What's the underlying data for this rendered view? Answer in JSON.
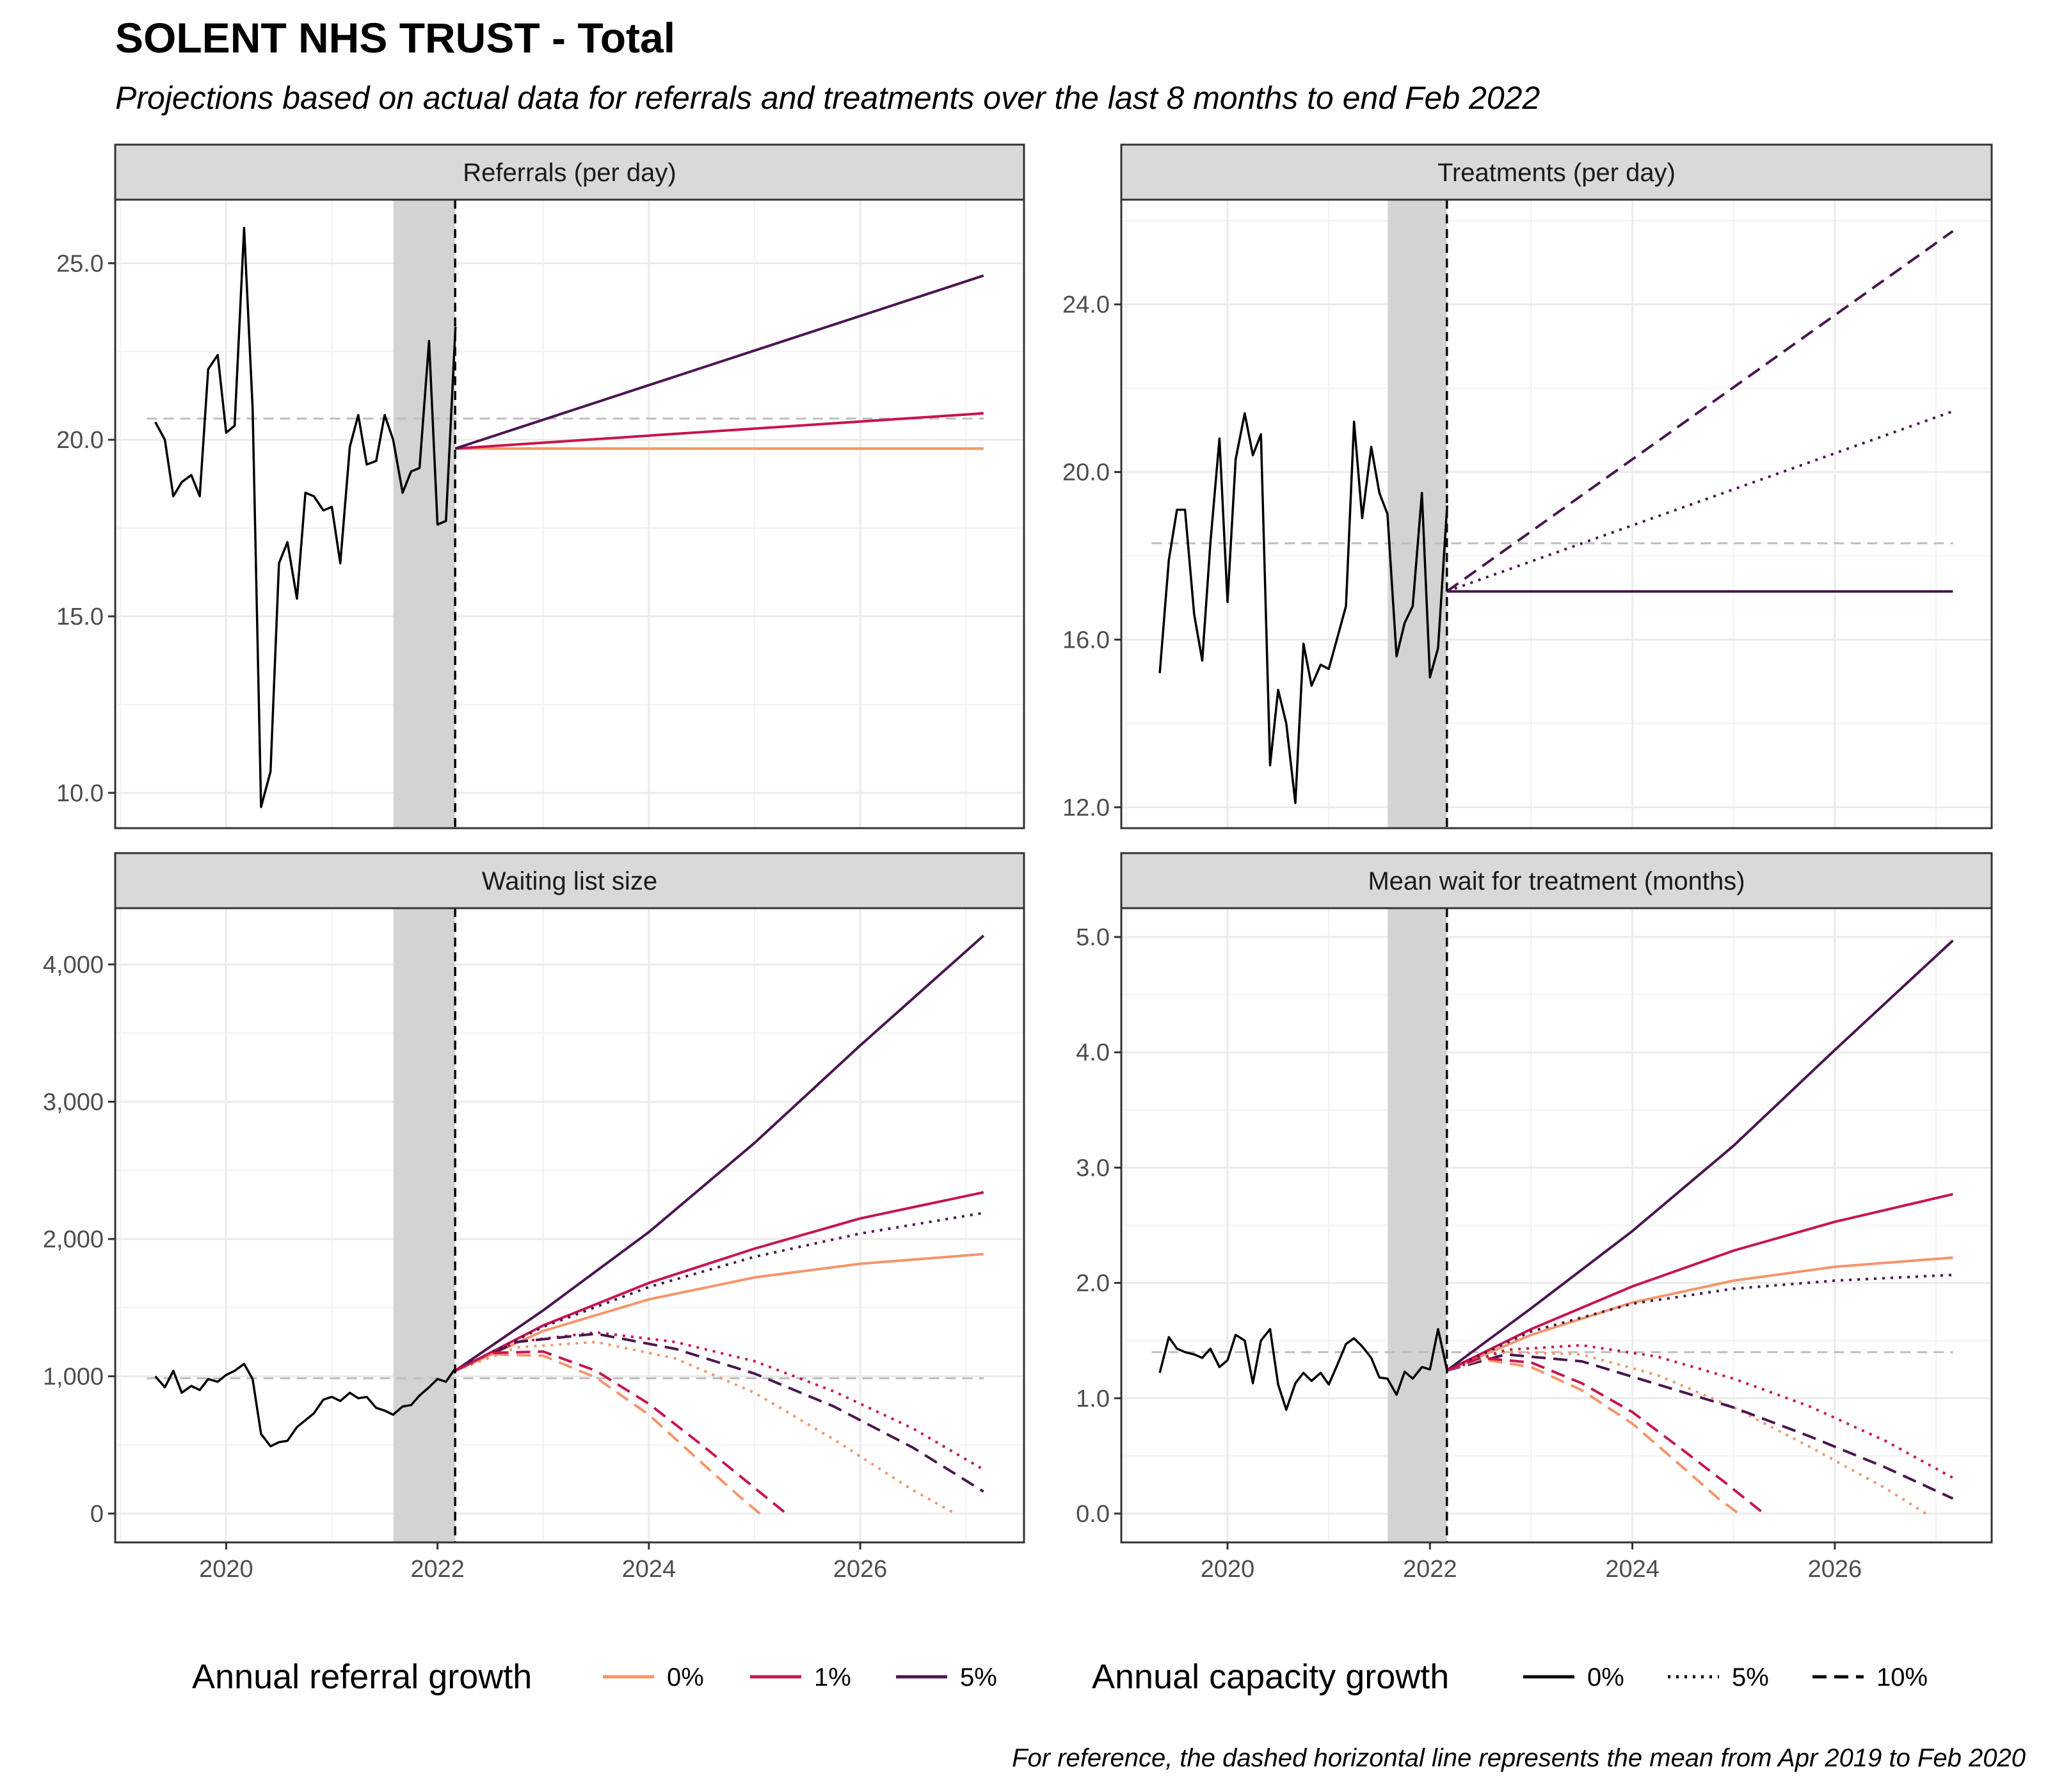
{
  "title": "SOLENT NHS TRUST - Total",
  "subtitle": "Projections based on actual data for referrals and treatments over the last 8 months to end Feb 2022",
  "caption": "For reference, the dashed horizontal line represents the mean from Apr 2019 to Feb 2020",
  "legend": {
    "referral_title": "Annual referral growth",
    "referral_items": [
      {
        "label": "0%",
        "color": "#F4956A"
      },
      {
        "label": "1%",
        "color": "#C6154F"
      },
      {
        "label": "5%",
        "color": "#4A1550"
      }
    ],
    "capacity_title": "Annual capacity growth",
    "capacity_items": [
      {
        "label": "0%",
        "dash": "solid"
      },
      {
        "label": "5%",
        "dash": "dotted"
      },
      {
        "label": "10%",
        "dash": "dashed"
      }
    ],
    "position": "bottom"
  },
  "colors": {
    "growth_0": "#F4956A",
    "growth_1": "#C6154F",
    "growth_5": "#4A1550",
    "actual": "#000000",
    "reference": "#BEBEBE",
    "shade": "#D3D3D3",
    "strip": "#D9D9D9"
  },
  "chart_data": [
    {
      "type": "line",
      "panel_title": "Referrals (per day)",
      "x_ticks": [
        2020,
        2022,
        2024,
        2026
      ],
      "x_tick_labels": [
        "2020",
        "2022",
        "2024",
        "2026"
      ],
      "xlim": [
        2018.95,
        2027.55
      ],
      "y_ticks": [
        10,
        15,
        20,
        25
      ],
      "y_tick_labels": [
        "10.0",
        "15.0",
        "20.0",
        "25.0"
      ],
      "ylim": [
        9.0,
        26.8
      ],
      "grid": true,
      "shaded_period": [
        2021.583,
        2022.167
      ],
      "projection_start": 2022.167,
      "reference_mean": 20.6,
      "reference_range": [
        2019.25,
        2027.17
      ],
      "actual": {
        "x": [
          2019.33,
          2019.42,
          2019.5,
          2019.58,
          2019.67,
          2019.75,
          2019.83,
          2019.92,
          2020.0,
          2020.08,
          2020.17,
          2020.25,
          2020.33,
          2020.42,
          2020.5,
          2020.58,
          2020.67,
          2020.75,
          2020.83,
          2020.92,
          2021.0,
          2021.08,
          2021.17,
          2021.25,
          2021.33,
          2021.42,
          2021.5,
          2021.58,
          2021.67,
          2021.75,
          2021.83,
          2021.92,
          2022.0,
          2022.08,
          2022.17
        ],
        "y": [
          20.5,
          20.0,
          18.4,
          18.8,
          19.0,
          18.4,
          22.0,
          22.4,
          20.2,
          20.4,
          26.0,
          20.9,
          9.6,
          10.6,
          16.5,
          17.1,
          15.5,
          18.5,
          18.4,
          18.0,
          18.1,
          16.5,
          19.8,
          20.7,
          19.3,
          19.4,
          20.7,
          20.0,
          18.5,
          19.1,
          19.2,
          22.8,
          17.6,
          17.7,
          23.2
        ]
      },
      "series": [
        {
          "name": "0%",
          "referral_growth": "0%",
          "capacity_growth": "0%",
          "x": [
            2022.167,
            2027.167
          ],
          "y": [
            19.75,
            19.75
          ]
        },
        {
          "name": "1%",
          "referral_growth": "1%",
          "capacity_growth": "0%",
          "x": [
            2022.167,
            2027.167
          ],
          "y": [
            19.75,
            20.75
          ]
        },
        {
          "name": "5%",
          "referral_growth": "5%",
          "capacity_growth": "0%",
          "x": [
            2022.167,
            2027.167
          ],
          "y": [
            19.75,
            24.65
          ]
        }
      ]
    },
    {
      "type": "line",
      "panel_title": "Treatments (per day)",
      "x_ticks": [
        2020,
        2022,
        2024,
        2026
      ],
      "x_tick_labels": [
        "2020",
        "2022",
        "2024",
        "2026"
      ],
      "xlim": [
        2018.95,
        2027.55
      ],
      "y_ticks": [
        12,
        16,
        20,
        24
      ],
      "y_tick_labels": [
        "12.0",
        "16.0",
        "20.0",
        "24.0"
      ],
      "ylim": [
        11.5,
        26.5
      ],
      "grid": true,
      "shaded_period": [
        2021.583,
        2022.167
      ],
      "projection_start": 2022.167,
      "reference_mean": 18.3,
      "reference_range": [
        2019.25,
        2027.17
      ],
      "actual": {
        "x": [
          2019.33,
          2019.42,
          2019.5,
          2019.58,
          2019.67,
          2019.75,
          2019.83,
          2019.92,
          2020.0,
          2020.08,
          2020.17,
          2020.25,
          2020.33,
          2020.42,
          2020.5,
          2020.58,
          2020.67,
          2020.75,
          2020.83,
          2020.92,
          2021.0,
          2021.08,
          2021.17,
          2021.25,
          2021.33,
          2021.42,
          2021.5,
          2021.58,
          2021.67,
          2021.75,
          2021.83,
          2021.92,
          2022.0,
          2022.08,
          2022.17
        ],
        "y": [
          15.2,
          17.9,
          19.1,
          19.1,
          16.6,
          15.5,
          18.3,
          20.8,
          16.9,
          20.3,
          21.4,
          20.4,
          20.9,
          13.0,
          14.8,
          14.0,
          12.1,
          15.9,
          14.9,
          15.4,
          15.3,
          16.0,
          16.8,
          21.2,
          18.9,
          20.6,
          19.5,
          19.0,
          15.6,
          16.4,
          16.8,
          19.5,
          15.1,
          15.8,
          19.2
        ]
      },
      "series": [
        {
          "name": "0%",
          "capacity_growth": "0%",
          "x": [
            2022.167,
            2027.167
          ],
          "y": [
            17.15,
            17.15
          ]
        },
        {
          "name": "5%",
          "capacity_growth": "5%",
          "x": [
            2022.167,
            2027.167
          ],
          "y": [
            17.15,
            21.45
          ]
        },
        {
          "name": "10%",
          "capacity_growth": "10%",
          "x": [
            2022.167,
            2027.167
          ],
          "y": [
            17.15,
            25.75
          ]
        }
      ]
    },
    {
      "type": "line",
      "panel_title": "Waiting list size",
      "x_ticks": [
        2020,
        2022,
        2024,
        2026
      ],
      "x_tick_labels": [
        "2020",
        "2022",
        "2024",
        "2026"
      ],
      "xlim": [
        2018.95,
        2027.55
      ],
      "y_ticks": [
        0,
        1000,
        2000,
        3000,
        4000
      ],
      "y_tick_labels": [
        "0",
        "1,000",
        "2,000",
        "3,000",
        "4,000"
      ],
      "ylim": [
        -210,
        4410
      ],
      "grid": true,
      "shaded_period": [
        2021.583,
        2022.167
      ],
      "projection_start": 2022.167,
      "reference_mean": 985,
      "reference_range": [
        2019.25,
        2027.17
      ],
      "actual": {
        "x": [
          2019.33,
          2019.42,
          2019.5,
          2019.58,
          2019.67,
          2019.75,
          2019.83,
          2019.92,
          2020.0,
          2020.08,
          2020.17,
          2020.25,
          2020.33,
          2020.42,
          2020.5,
          2020.58,
          2020.67,
          2020.75,
          2020.83,
          2020.92,
          2021.0,
          2021.08,
          2021.17,
          2021.25,
          2021.33,
          2021.42,
          2021.5,
          2021.58,
          2021.67,
          2021.75,
          2021.83,
          2021.92,
          2022.0,
          2022.08,
          2022.17
        ],
        "y": [
          1000,
          920,
          1040,
          880,
          930,
          900,
          980,
          960,
          1010,
          1040,
          1090,
          980,
          580,
          490,
          520,
          530,
          630,
          680,
          730,
          830,
          850,
          820,
          880,
          840,
          850,
          770,
          750,
          720,
          780,
          790,
          860,
          920,
          980,
          960,
          1060
        ]
      },
      "series": [
        {
          "referral_growth": "0%",
          "capacity_growth": "0%",
          "x": [
            2022.167,
            2023.0,
            2024.0,
            2025.0,
            2026.0,
            2027.167
          ],
          "y": [
            1040,
            1330,
            1560,
            1720,
            1820,
            1890
          ]
        },
        {
          "referral_growth": "1%",
          "capacity_growth": "0%",
          "x": [
            2022.167,
            2023.0,
            2024.0,
            2025.0,
            2026.0,
            2027.167
          ],
          "y": [
            1040,
            1370,
            1680,
            1930,
            2150,
            2340
          ]
        },
        {
          "referral_growth": "5%",
          "capacity_growth": "0%",
          "x": [
            2022.167,
            2023.0,
            2024.0,
            2025.0,
            2026.0,
            2027.167
          ],
          "y": [
            1040,
            1480,
            2050,
            2700,
            3410,
            4210
          ]
        },
        {
          "referral_growth": "5%",
          "capacity_growth": "5%",
          "x": [
            2022.167,
            2023.0,
            2024.0,
            2025.0,
            2026.0,
            2027.167
          ],
          "y": [
            1040,
            1360,
            1650,
            1870,
            2040,
            2190
          ]
        },
        {
          "referral_growth": "0%",
          "capacity_growth": "5%",
          "x": [
            2022.167,
            2022.75,
            2023.5,
            2024.25,
            2025.0,
            2025.75,
            2026.5,
            2026.9
          ],
          "y": [
            1040,
            1210,
            1250,
            1130,
            880,
            540,
            170,
            0
          ]
        },
        {
          "referral_growth": "1%",
          "capacity_growth": "5%",
          "x": [
            2022.167,
            2022.75,
            2023.5,
            2024.25,
            2025.0,
            2025.75,
            2026.5,
            2027.167
          ],
          "y": [
            1040,
            1250,
            1320,
            1250,
            1110,
            890,
            620,
            320
          ]
        },
        {
          "referral_growth": "5%",
          "capacity_growth": "10%",
          "x": [
            2022.167,
            2022.75,
            2023.5,
            2024.25,
            2025.0,
            2025.75,
            2026.5,
            2027.167
          ],
          "y": [
            1040,
            1250,
            1310,
            1200,
            1020,
            780,
            480,
            160
          ]
        },
        {
          "referral_growth": "0%",
          "capacity_growth": "10%",
          "x": [
            2022.167,
            2022.5,
            2023.0,
            2023.5,
            2024.0,
            2024.5,
            2024.85,
            2025.05
          ],
          "y": [
            1040,
            1160,
            1150,
            990,
            720,
            370,
            130,
            0
          ]
        },
        {
          "referral_growth": "1%",
          "capacity_growth": "10%",
          "x": [
            2022.167,
            2022.5,
            2023.0,
            2023.5,
            2024.0,
            2024.5,
            2024.9,
            2025.3
          ],
          "y": [
            1040,
            1170,
            1180,
            1040,
            800,
            500,
            250,
            0
          ]
        }
      ]
    },
    {
      "type": "line",
      "panel_title": "Mean wait for treatment (months)",
      "x_ticks": [
        2020,
        2022,
        2024,
        2026
      ],
      "x_tick_labels": [
        "2020",
        "2022",
        "2024",
        "2026"
      ],
      "xlim": [
        2018.95,
        2027.55
      ],
      "y_ticks": [
        0,
        1,
        2,
        3,
        4,
        5
      ],
      "y_tick_labels": [
        "0.0",
        "1.0",
        "2.0",
        "3.0",
        "4.0",
        "5.0"
      ],
      "ylim": [
        -0.25,
        5.25
      ],
      "grid": true,
      "shaded_period": [
        2021.583,
        2022.167
      ],
      "projection_start": 2022.167,
      "reference_mean": 1.4,
      "reference_range": [
        2019.25,
        2027.17
      ],
      "actual": {
        "x": [
          2019.33,
          2019.42,
          2019.5,
          2019.58,
          2019.67,
          2019.75,
          2019.83,
          2019.92,
          2020.0,
          2020.08,
          2020.17,
          2020.25,
          2020.33,
          2020.42,
          2020.5,
          2020.58,
          2020.67,
          2020.75,
          2020.83,
          2020.92,
          2021.0,
          2021.08,
          2021.17,
          2021.25,
          2021.33,
          2021.42,
          2021.5,
          2021.58,
          2021.67,
          2021.75,
          2021.83,
          2021.92,
          2022.0,
          2022.08,
          2022.17
        ],
        "y": [
          1.22,
          1.53,
          1.43,
          1.4,
          1.38,
          1.35,
          1.43,
          1.27,
          1.33,
          1.55,
          1.5,
          1.13,
          1.5,
          1.6,
          1.12,
          0.9,
          1.13,
          1.22,
          1.15,
          1.22,
          1.12,
          1.28,
          1.47,
          1.52,
          1.45,
          1.35,
          1.18,
          1.17,
          1.03,
          1.23,
          1.17,
          1.27,
          1.25,
          1.6,
          1.24
        ]
      },
      "series": [
        {
          "referral_growth": "0%",
          "capacity_growth": "0%",
          "x": [
            2022.167,
            2023.0,
            2024.0,
            2025.0,
            2026.0,
            2027.167
          ],
          "y": [
            1.24,
            1.55,
            1.83,
            2.02,
            2.14,
            2.22
          ]
        },
        {
          "referral_growth": "1%",
          "capacity_growth": "0%",
          "x": [
            2022.167,
            2023.0,
            2024.0,
            2025.0,
            2026.0,
            2027.167
          ],
          "y": [
            1.24,
            1.6,
            1.97,
            2.28,
            2.53,
            2.77
          ]
        },
        {
          "referral_growth": "5%",
          "capacity_growth": "0%",
          "x": [
            2022.167,
            2023.0,
            2024.0,
            2025.0,
            2026.0,
            2027.167
          ],
          "y": [
            1.24,
            1.78,
            2.45,
            3.19,
            4.02,
            4.97
          ]
        },
        {
          "referral_growth": "5%",
          "capacity_growth": "5%",
          "x": [
            2022.167,
            2023.0,
            2024.0,
            2025.0,
            2026.0,
            2027.167
          ],
          "y": [
            1.24,
            1.58,
            1.82,
            1.95,
            2.02,
            2.07
          ]
        },
        {
          "referral_growth": "0%",
          "capacity_growth": "5%",
          "x": [
            2022.167,
            2022.75,
            2023.5,
            2024.25,
            2025.0,
            2025.75,
            2026.5,
            2026.9
          ],
          "y": [
            1.24,
            1.4,
            1.38,
            1.2,
            0.92,
            0.58,
            0.22,
            0
          ]
        },
        {
          "referral_growth": "1%",
          "capacity_growth": "5%",
          "x": [
            2022.167,
            2022.75,
            2023.5,
            2024.25,
            2025.0,
            2025.75,
            2026.5,
            2027.167
          ],
          "y": [
            1.24,
            1.42,
            1.46,
            1.36,
            1.17,
            0.93,
            0.63,
            0.31
          ]
        },
        {
          "referral_growth": "5%",
          "capacity_growth": "10%",
          "x": [
            2022.167,
            2022.75,
            2023.5,
            2024.25,
            2025.0,
            2025.75,
            2026.5,
            2027.167
          ],
          "y": [
            1.24,
            1.38,
            1.32,
            1.12,
            0.92,
            0.67,
            0.4,
            0.13
          ]
        },
        {
          "referral_growth": "0%",
          "capacity_growth": "10%",
          "x": [
            2022.167,
            2022.5,
            2023.0,
            2023.5,
            2024.0,
            2024.5,
            2024.85,
            2025.05
          ],
          "y": [
            1.24,
            1.34,
            1.27,
            1.07,
            0.78,
            0.4,
            0.13,
            0
          ]
        },
        {
          "referral_growth": "1%",
          "capacity_growth": "10%",
          "x": [
            2022.167,
            2022.5,
            2023.0,
            2023.5,
            2024.0,
            2024.5,
            2024.9,
            2025.3
          ],
          "y": [
            1.24,
            1.35,
            1.31,
            1.13,
            0.88,
            0.55,
            0.28,
            0
          ]
        }
      ]
    }
  ]
}
